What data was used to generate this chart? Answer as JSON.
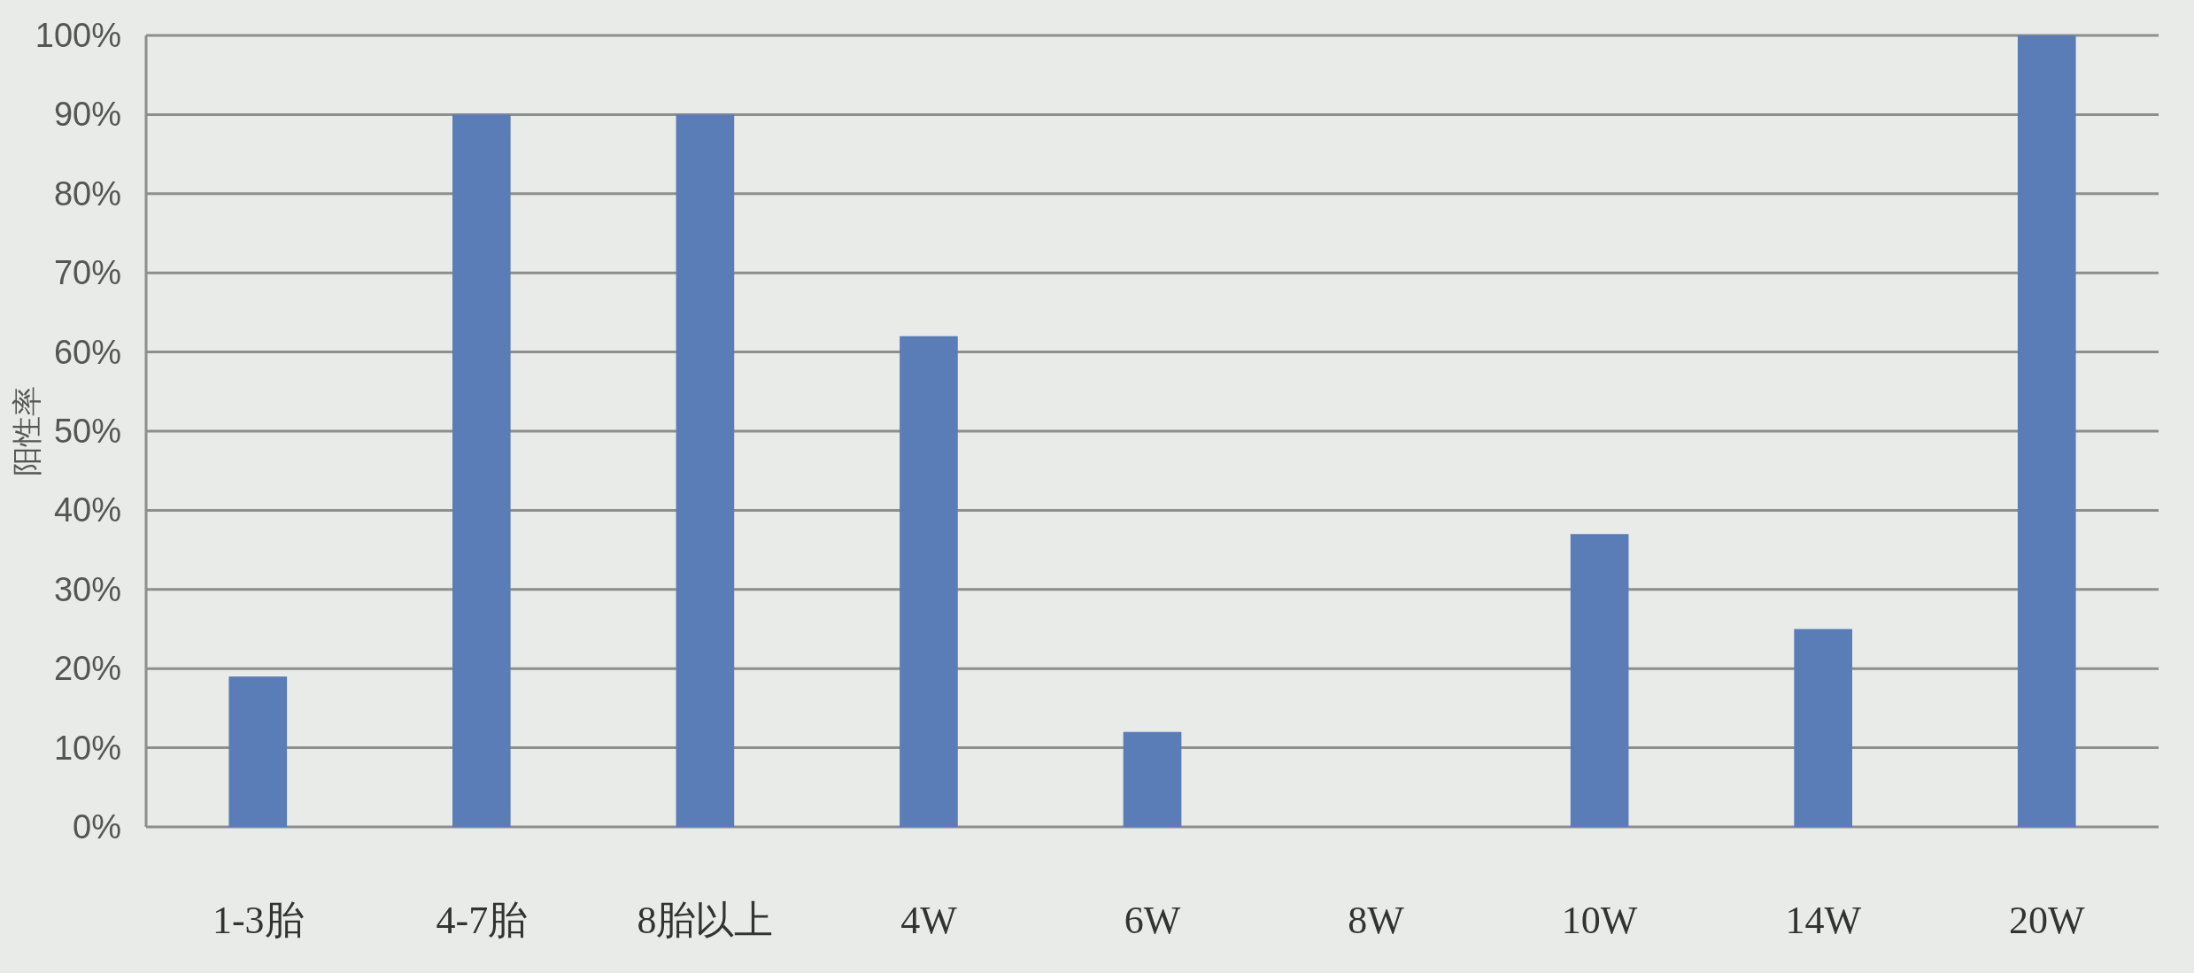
{
  "chart_data": {
    "type": "bar",
    "ylabel": "阳性率",
    "categories": [
      "1-3胎",
      "4-7胎",
      "8胎以上",
      "4W",
      "6W",
      "8W",
      "10W",
      "14W",
      "20W"
    ],
    "values": [
      19,
      90,
      90,
      62,
      12,
      0,
      37,
      25,
      100
    ],
    "color": "#5a7db8",
    "ylim": [
      0,
      100
    ],
    "yticks": [
      {
        "value": 0,
        "label": "0%"
      },
      {
        "value": 10,
        "label": "10%"
      },
      {
        "value": 20,
        "label": "20%"
      },
      {
        "value": 30,
        "label": "30%"
      },
      {
        "value": 40,
        "label": "40%"
      },
      {
        "value": 50,
        "label": "50%"
      },
      {
        "value": 60,
        "label": "60%"
      },
      {
        "value": 70,
        "label": "70%"
      },
      {
        "value": 80,
        "label": "80%"
      },
      {
        "value": 90,
        "label": "90%"
      },
      {
        "value": 100,
        "label": "100%"
      }
    ],
    "grid": "y"
  }
}
